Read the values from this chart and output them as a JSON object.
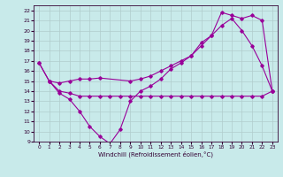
{
  "xlabel": "Windchill (Refroidissement éolien,°C)",
  "xlim": [
    -0.5,
    23.5
  ],
  "ylim": [
    9,
    22.5
  ],
  "xticks": [
    0,
    1,
    2,
    3,
    4,
    5,
    6,
    7,
    8,
    9,
    10,
    11,
    12,
    13,
    14,
    15,
    16,
    17,
    18,
    19,
    20,
    21,
    22,
    23
  ],
  "yticks": [
    9,
    10,
    11,
    12,
    13,
    14,
    15,
    16,
    17,
    18,
    19,
    20,
    21,
    22
  ],
  "bg_color": "#c8eaea",
  "line_color": "#990099",
  "grid_color": "#b0cccc",
  "line1_x": [
    0,
    1,
    2,
    3,
    4,
    5,
    6,
    7,
    8,
    9,
    10,
    11,
    12,
    13,
    14,
    15,
    16,
    17,
    18,
    19,
    20,
    21,
    22,
    23
  ],
  "line1_y": [
    16.8,
    15.0,
    13.8,
    13.2,
    12.0,
    10.5,
    9.5,
    8.8,
    10.2,
    13.0,
    14.0,
    14.5,
    15.2,
    16.2,
    16.8,
    17.5,
    18.5,
    19.5,
    20.5,
    21.2,
    20.0,
    18.5,
    16.5,
    14.0
  ],
  "line2_x": [
    0,
    1,
    2,
    3,
    4,
    5,
    6,
    9,
    10,
    11,
    12,
    13,
    14,
    15,
    16,
    17,
    18,
    19,
    20,
    21,
    22,
    23
  ],
  "line2_y": [
    16.8,
    15.0,
    14.8,
    15.0,
    15.2,
    15.2,
    15.3,
    15.0,
    15.2,
    15.5,
    16.0,
    16.5,
    17.0,
    17.5,
    18.8,
    19.5,
    21.8,
    21.5,
    21.2,
    21.5,
    21.0,
    14.0
  ],
  "line3_x": [
    1,
    2,
    3,
    4,
    5,
    6,
    7,
    8,
    9,
    10,
    11,
    12,
    13,
    14,
    15,
    16,
    17,
    18,
    19,
    20,
    21,
    22,
    23
  ],
  "line3_y": [
    15.0,
    14.0,
    13.8,
    13.5,
    13.5,
    13.5,
    13.5,
    13.5,
    13.5,
    13.5,
    13.5,
    13.5,
    13.5,
    13.5,
    13.5,
    13.5,
    13.5,
    13.5,
    13.5,
    13.5,
    13.5,
    13.5,
    14.0
  ]
}
